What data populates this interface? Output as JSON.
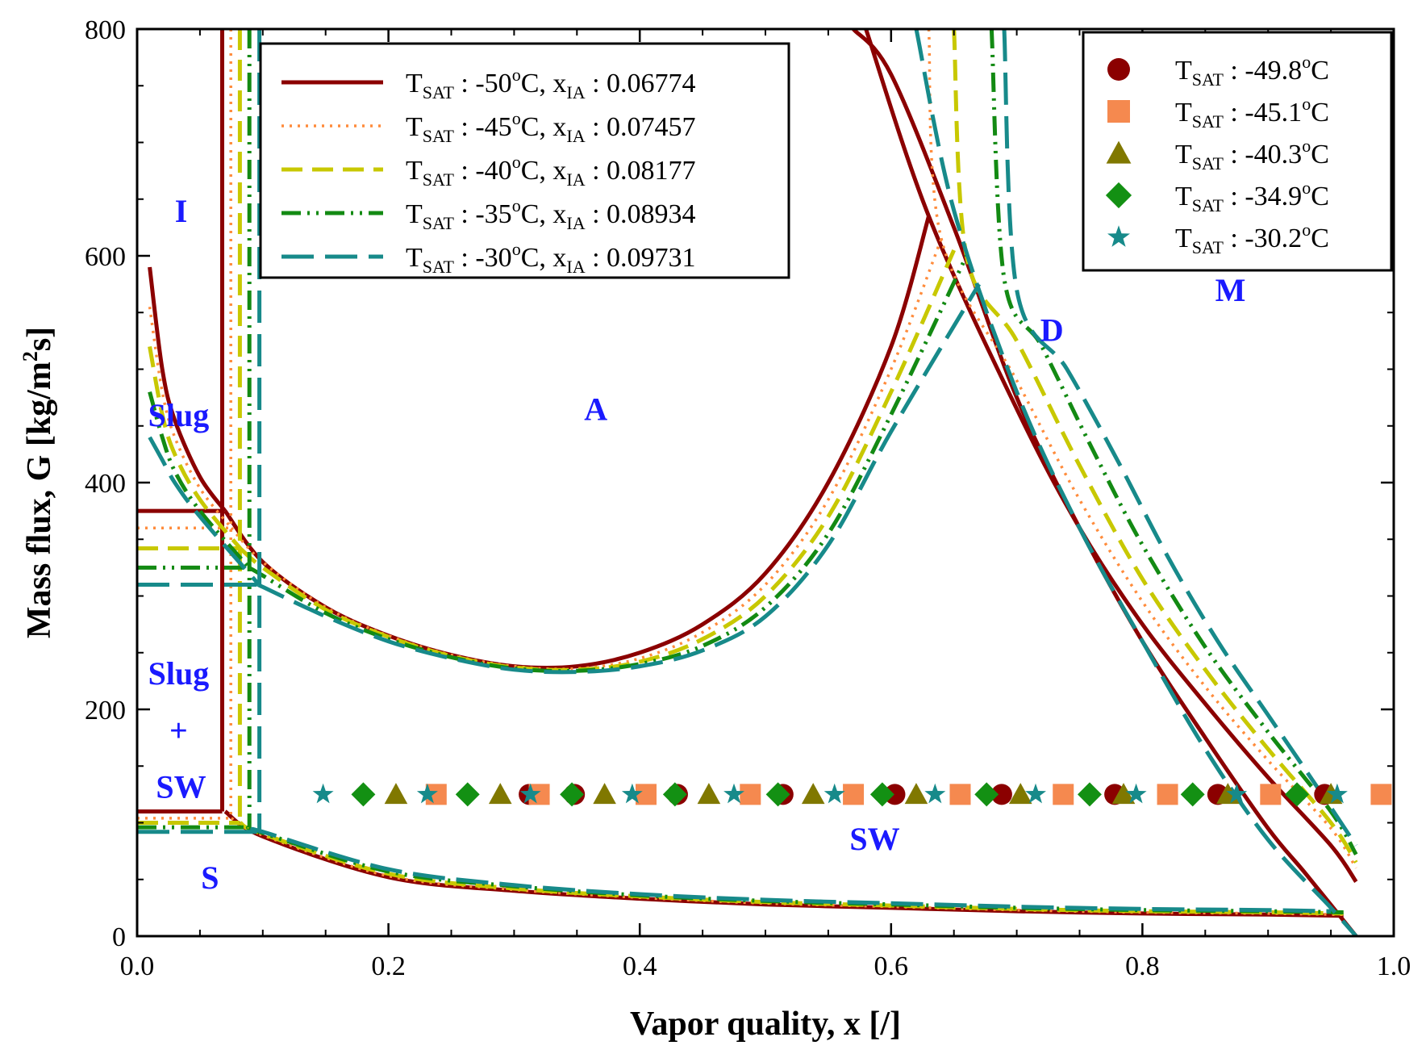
{
  "chart_data": {
    "type": "line",
    "title": "",
    "xlabel": "Vapor quality, x [/]",
    "ylabel": "Mass flux, G [kg/m²s]",
    "ylabel_parts": {
      "main": "Mass flux, G [kg/m",
      "sup": "2",
      "tail": "s]"
    },
    "xlim": [
      0.0,
      1.0
    ],
    "ylim": [
      0,
      800
    ],
    "xticks": [
      0.0,
      0.2,
      0.4,
      0.6,
      0.8,
      1.0
    ],
    "xtick_labels": [
      "0.0",
      "0.2",
      "0.4",
      "0.6",
      "0.8",
      "1.0"
    ],
    "yticks": [
      0,
      200,
      400,
      600,
      800
    ],
    "ytick_labels": [
      "0",
      "200",
      "400",
      "600",
      "800"
    ],
    "grid": false,
    "legend_lines_placement": "top-center",
    "legend_markers_placement": "top-right",
    "line_series": [
      {
        "name": "T_SAT : -50°C, x_IA : 0.06774",
        "temp": "-50",
        "xia_label": "0.06774",
        "xia": 0.06774,
        "color": "#8b0000",
        "style": "solid",
        "annular_x": [
          0.07,
          0.1,
          0.15,
          0.2,
          0.25,
          0.3,
          0.35,
          0.4,
          0.45,
          0.5,
          0.55,
          0.6,
          0.63
        ],
        "annular_g": [
          375,
          330,
          290,
          265,
          248,
          238,
          238,
          250,
          275,
          320,
          400,
          520,
          635
        ],
        "slug_x": [
          0.01,
          0.02,
          0.03,
          0.05,
          0.07
        ],
        "slug_g": [
          590,
          500,
          455,
          405,
          375
        ],
        "dryout_x": [
          0.58,
          0.63,
          0.7,
          0.75,
          0.8,
          0.85,
          0.9,
          0.95,
          0.97
        ],
        "dryout_g": [
          800,
          635,
          465,
          360,
          275,
          205,
          140,
          80,
          48
        ],
        "mist_x": [
          0.57,
          0.6,
          0.65,
          0.7,
          0.75,
          0.8,
          0.85,
          0.9,
          0.93,
          0.97
        ],
        "mist_g": [
          800,
          760,
          625,
          475,
          360,
          260,
          175,
          95,
          55,
          0
        ],
        "strat_x": [
          0.07,
          0.1,
          0.2,
          0.3,
          0.4,
          0.5,
          0.6,
          0.7,
          0.8,
          0.9,
          0.96
        ],
        "strat_g": [
          110,
          88,
          52,
          40,
          33,
          28,
          25,
          22,
          20,
          19,
          18
        ],
        "g_ia": 375,
        "g_sw": 110
      },
      {
        "name": "T_SAT : -45°C, x_IA : 0.07457",
        "temp": "-45",
        "xia_label": "0.07457",
        "xia": 0.07457,
        "color": "#ff8c3c",
        "style": "dotted",
        "annular_x": [
          0.075,
          0.1,
          0.15,
          0.2,
          0.25,
          0.3,
          0.35,
          0.4,
          0.45,
          0.5,
          0.55,
          0.6,
          0.64
        ],
        "annular_g": [
          360,
          330,
          290,
          265,
          248,
          238,
          236,
          245,
          268,
          310,
          385,
          500,
          615
        ],
        "slug_x": [
          0.01,
          0.02,
          0.03,
          0.05,
          0.075
        ],
        "slug_g": [
          555,
          480,
          440,
          395,
          360
        ],
        "dryout_x": [
          0.63,
          0.64,
          0.7,
          0.75,
          0.8,
          0.85,
          0.9,
          0.95,
          0.97
        ],
        "dryout_g": [
          800,
          615,
          490,
          385,
          295,
          220,
          155,
          95,
          60
        ],
        "strat_x": [
          0.075,
          0.1,
          0.2,
          0.3,
          0.4,
          0.5,
          0.6,
          0.7,
          0.8,
          0.9,
          0.96
        ],
        "strat_g": [
          104,
          89,
          53,
          41,
          34,
          29,
          26,
          23,
          21,
          20,
          19
        ],
        "g_ia": 360,
        "g_sw": 104
      },
      {
        "name": "T_SAT : -40°C, x_IA : 0.08177",
        "temp": "-40",
        "xia_label": "0.08177",
        "xia": 0.08177,
        "color": "#c8c800",
        "style": "dashed",
        "annular_x": [
          0.082,
          0.1,
          0.15,
          0.2,
          0.25,
          0.3,
          0.35,
          0.4,
          0.45,
          0.5,
          0.55,
          0.6,
          0.65
        ],
        "annular_g": [
          342,
          325,
          288,
          264,
          247,
          237,
          235,
          242,
          262,
          300,
          370,
          480,
          605
        ],
        "slug_x": [
          0.01,
          0.02,
          0.03,
          0.05,
          0.082
        ],
        "slug_g": [
          520,
          460,
          425,
          385,
          342
        ],
        "dryout_x": [
          0.65,
          0.66,
          0.7,
          0.75,
          0.8,
          0.85,
          0.9,
          0.95,
          0.97
        ],
        "dryout_g": [
          800,
          600,
          525,
          415,
          315,
          235,
          165,
          100,
          65
        ],
        "strat_x": [
          0.082,
          0.1,
          0.2,
          0.3,
          0.4,
          0.5,
          0.6,
          0.7,
          0.8,
          0.9,
          0.96
        ],
        "strat_g": [
          100,
          90,
          55,
          42,
          35,
          30,
          27,
          24,
          22,
          21,
          20
        ],
        "g_ia": 342,
        "g_sw": 100
      },
      {
        "name": "T_SAT : -35°C, x_IA : 0.08934",
        "temp": "-35",
        "xia_label": "0.08934",
        "xia": 0.08934,
        "color": "#138a13",
        "style": "dashdotdot",
        "annular_x": [
          0.089,
          0.1,
          0.15,
          0.2,
          0.25,
          0.3,
          0.35,
          0.4,
          0.45,
          0.5,
          0.55,
          0.6,
          0.66
        ],
        "annular_g": [
          325,
          318,
          285,
          262,
          246,
          236,
          234,
          240,
          256,
          290,
          355,
          460,
          600
        ],
        "slug_x": [
          0.01,
          0.02,
          0.03,
          0.05,
          0.089
        ],
        "slug_g": [
          480,
          440,
          410,
          375,
          325
        ],
        "dryout_x": [
          0.68,
          0.69,
          0.72,
          0.76,
          0.8,
          0.85,
          0.9,
          0.95,
          0.97
        ],
        "dryout_g": [
          800,
          580,
          520,
          430,
          345,
          255,
          180,
          110,
          72
        ],
        "strat_x": [
          0.089,
          0.1,
          0.2,
          0.3,
          0.4,
          0.5,
          0.6,
          0.7,
          0.8,
          0.9,
          0.96
        ],
        "strat_g": [
          96,
          91,
          57,
          44,
          36,
          31,
          28,
          25,
          23,
          22,
          21
        ],
        "g_ia": 325,
        "g_sw": 96
      },
      {
        "name": "T_SAT : -30°C, x_IA : 0.09731",
        "temp": "-30",
        "xia_label": "0.09731",
        "xia": 0.09731,
        "color": "#178a8a",
        "style": "longdash",
        "annular_x": [
          0.097,
          0.1,
          0.15,
          0.2,
          0.25,
          0.3,
          0.35,
          0.4,
          0.45,
          0.5,
          0.55,
          0.6,
          0.67
        ],
        "annular_g": [
          310,
          308,
          282,
          260,
          245,
          235,
          233,
          238,
          252,
          282,
          345,
          445,
          575
        ],
        "slug_x": [
          0.01,
          0.02,
          0.03,
          0.05,
          0.097
        ],
        "slug_g": [
          440,
          420,
          400,
          370,
          310
        ],
        "dryout_x": [
          0.69,
          0.7,
          0.74,
          0.78,
          0.82,
          0.86,
          0.9,
          0.94,
          0.97
        ],
        "dryout_g": [
          800,
          570,
          500,
          420,
          335,
          260,
          195,
          130,
          80
        ],
        "mist_x": [
          0.62,
          0.65,
          0.7,
          0.75,
          0.8,
          0.85,
          0.9,
          0.95,
          0.97
        ],
        "mist_g": [
          800,
          640,
          480,
          360,
          260,
          165,
          85,
          25,
          0
        ],
        "strat_x": [
          0.097,
          0.1,
          0.2,
          0.3,
          0.4,
          0.5,
          0.6,
          0.7,
          0.8,
          0.9,
          0.95
        ],
        "strat_g": [
          92,
          92,
          59,
          45,
          37,
          32,
          29,
          26,
          24,
          23,
          22
        ],
        "g_ia": 310,
        "g_sw": 92
      }
    ],
    "point_series": [
      {
        "name": "T_SAT : -49.8°C",
        "temp": "-49.8",
        "marker": "circle",
        "color": "#8b0000",
        "x": [
          0.312,
          0.348,
          0.43,
          0.514,
          0.603,
          0.688,
          0.778,
          0.86,
          0.945
        ],
        "y": [
          125,
          125,
          125,
          125,
          125,
          125,
          125,
          125,
          125
        ]
      },
      {
        "name": "T_SAT : -45.1°C",
        "temp": "-45.1",
        "marker": "square",
        "color": "#f5894f",
        "x": [
          0.238,
          0.32,
          0.405,
          0.488,
          0.57,
          0.655,
          0.737,
          0.82,
          0.902,
          0.99
        ],
        "y": [
          125,
          125,
          125,
          125,
          125,
          125,
          125,
          125,
          125,
          125
        ]
      },
      {
        "name": "T_SAT : -40.3°C",
        "temp": "-40.3",
        "marker": "triangle",
        "color": "#807800",
        "x": [
          0.206,
          0.289,
          0.372,
          0.455,
          0.538,
          0.62,
          0.703,
          0.785,
          0.868,
          0.95
        ],
        "y": [
          125,
          125,
          125,
          125,
          125,
          125,
          125,
          125,
          125,
          125
        ]
      },
      {
        "name": "T_SAT : -34.9°C",
        "temp": "-34.9",
        "marker": "diamond",
        "color": "#139013",
        "x": [
          0.18,
          0.263,
          0.346,
          0.428,
          0.51,
          0.593,
          0.676,
          0.758,
          0.84,
          0.923
        ],
        "y": [
          125,
          125,
          125,
          125,
          125,
          125,
          125,
          125,
          125,
          125
        ]
      },
      {
        "name": "T_SAT : -30.2°C",
        "temp": "-30.2",
        "marker": "star",
        "color": "#178a8a",
        "x": [
          0.148,
          0.231,
          0.313,
          0.394,
          0.475,
          0.555,
          0.635,
          0.715,
          0.795,
          0.875,
          0.955
        ],
        "y": [
          125,
          125,
          125,
          125,
          125,
          125,
          125,
          125,
          125,
          125,
          125
        ]
      }
    ],
    "region_labels": [
      {
        "text": "I",
        "x": 0.035,
        "y": 630
      },
      {
        "text": "Slug",
        "x": 0.033,
        "y": 450
      },
      {
        "text": "Slug",
        "x": 0.033,
        "y": 222
      },
      {
        "text": "+",
        "x": 0.033,
        "y": 172
      },
      {
        "text": "SW",
        "x": 0.035,
        "y": 122
      },
      {
        "text": "S",
        "x": 0.058,
        "y": 42
      },
      {
        "text": "A",
        "x": 0.365,
        "y": 455
      },
      {
        "text": "D",
        "x": 0.728,
        "y": 525
      },
      {
        "text": "M",
        "x": 0.87,
        "y": 560
      },
      {
        "text": "SW",
        "x": 0.587,
        "y": 76
      }
    ]
  }
}
